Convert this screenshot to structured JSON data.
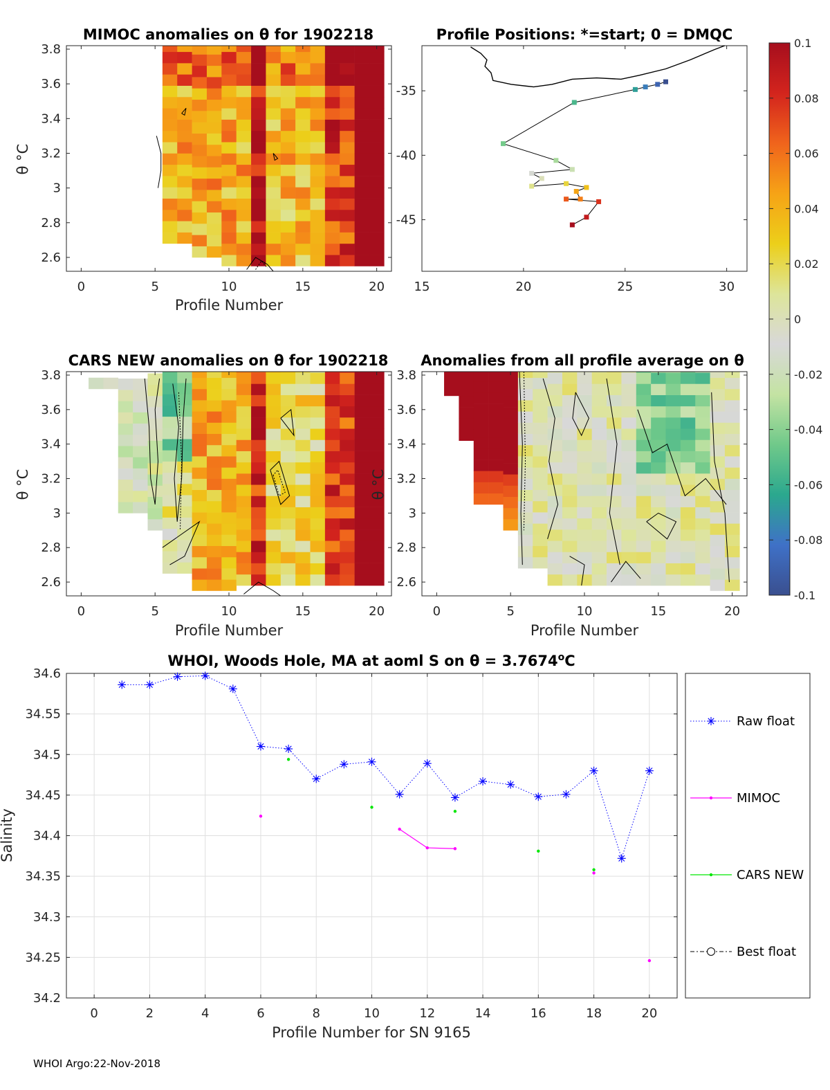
{
  "footer": "WHOI Argo:22-Nov-2018",
  "panels": {
    "mimoc": {
      "title": "MIMOC anomalies on θ  for 1902218",
      "xlabel": "Profile Number",
      "ylabel": "θ °C"
    },
    "positions": {
      "title": "Profile Positions: *=start; 0 = DMQC"
    },
    "cars": {
      "title": "CARS NEW anomalies on θ for 1902218",
      "xlabel": "Profile Number",
      "ylabel": "θ °C"
    },
    "avg": {
      "title": "Anomalies from all profile average on θ",
      "xlabel": "Profile Number",
      "ylabel": "θ °C"
    }
  },
  "colorbar": {
    "ticks": [
      "0.1",
      "0.08",
      "0.06",
      "0.04",
      "0.02",
      "0",
      "-0.02",
      "-0.04",
      "-0.06",
      "-0.08",
      "-0.1"
    ],
    "stops": [
      "#a60e1d",
      "#d3241d",
      "#f0641c",
      "#f6a316",
      "#eccf1a",
      "#dde59a",
      "#d8d8d8",
      "#c4e3a3",
      "#70c98a",
      "#2ba88e",
      "#3f71c7",
      "#3a4f8f"
    ]
  },
  "chart_data": [
    {
      "type": "heatmap",
      "id": "mimoc",
      "title": "MIMOC anomalies on θ  for 1902218",
      "xlabel": "Profile Number",
      "ylabel": "θ °C",
      "xlim": [
        -1,
        21
      ],
      "ylim": [
        2.52,
        3.82
      ],
      "xticks": [
        "0",
        "5",
        "10",
        "15",
        "20"
      ],
      "yticks": [
        "2.6",
        "2.8",
        "3",
        "3.2",
        "3.4",
        "3.6",
        "3.8"
      ],
      "profiles_with_data": [
        6,
        20
      ]
    },
    {
      "type": "scatter",
      "id": "positions",
      "title": "Profile Positions: *=start; 0 = DMQC",
      "xlim": [
        15,
        31
      ],
      "ylim": [
        -49,
        -31.5
      ],
      "xticks": [
        "15",
        "20",
        "25",
        "30"
      ],
      "yticks": [
        "-35",
        "-40",
        "-45"
      ],
      "track": [
        [
          27.0,
          -34.3
        ],
        [
          26.6,
          -34.5
        ],
        [
          26.0,
          -34.7
        ],
        [
          25.5,
          -34.9
        ],
        [
          22.5,
          -35.9
        ],
        [
          19.0,
          -39.1
        ],
        [
          21.6,
          -40.4
        ],
        [
          22.4,
          -41.1
        ],
        [
          20.4,
          -41.4
        ],
        [
          20.9,
          -41.8
        ],
        [
          20.4,
          -42.4
        ],
        [
          22.1,
          -42.2
        ],
        [
          23.1,
          -42.5
        ],
        [
          22.6,
          -42.8
        ],
        [
          22.8,
          -43.4
        ],
        [
          22.1,
          -43.4
        ],
        [
          23.7,
          -43.6
        ],
        [
          23.1,
          -44.8
        ],
        [
          22.4,
          -45.4
        ]
      ],
      "coast": [
        [
          17.4,
          -31.6
        ],
        [
          17.9,
          -32.1
        ],
        [
          18.2,
          -32.6
        ],
        [
          18.1,
          -33.1
        ],
        [
          18.4,
          -33.6
        ],
        [
          18.5,
          -34.2
        ],
        [
          19.4,
          -34.5
        ],
        [
          20.5,
          -34.7
        ],
        [
          21.4,
          -34.5
        ],
        [
          22.4,
          -34.1
        ],
        [
          23.6,
          -34.0
        ],
        [
          24.8,
          -34.1
        ],
        [
          25.7,
          -33.8
        ],
        [
          27.0,
          -33.3
        ],
        [
          28.2,
          -32.6
        ],
        [
          29.4,
          -31.8
        ],
        [
          29.9,
          -31.5
        ]
      ]
    },
    {
      "type": "heatmap",
      "id": "cars",
      "title": "CARS NEW anomalies on θ for 1902218",
      "xlabel": "Profile Number",
      "ylabel": "θ °C",
      "xlim": [
        -1,
        21
      ],
      "ylim": [
        2.52,
        3.82
      ],
      "xticks": [
        "0",
        "5",
        "10",
        "15",
        "20"
      ],
      "yticks": [
        "2.6",
        "2.8",
        "3",
        "3.2",
        "3.4",
        "3.6",
        "3.8"
      ],
      "profiles_with_data": [
        1,
        20
      ]
    },
    {
      "type": "heatmap",
      "id": "avg",
      "title": "Anomalies from all profile average on θ",
      "xlabel": "Profile Number",
      "ylabel": "θ °C",
      "xlim": [
        -1,
        21
      ],
      "ylim": [
        2.52,
        3.82
      ],
      "xticks": [
        "0",
        "5",
        "10",
        "15",
        "20"
      ],
      "yticks": [
        "2.6",
        "2.8",
        "3",
        "3.2",
        "3.4",
        "3.6",
        "3.8"
      ],
      "profiles_with_data": [
        1,
        20
      ]
    },
    {
      "type": "line",
      "id": "salinity",
      "title": "WHOI, Woods Hole, MA at aoml S on θ = 3.7674°C",
      "xlabel": "Profile Number for SN 9165",
      "ylabel": "Salinity",
      "xlim": [
        -1,
        21
      ],
      "ylim": [
        34.2,
        34.6
      ],
      "xticks": [
        "0",
        "2",
        "4",
        "6",
        "8",
        "10",
        "12",
        "14",
        "16",
        "18",
        "20"
      ],
      "yticks": [
        "34.2",
        "34.25",
        "34.3",
        "34.35",
        "34.4",
        "34.45",
        "34.5",
        "34.55",
        "34.6"
      ],
      "series": [
        {
          "name": "Raw float",
          "color": "#0000ff",
          "x": [
            1,
            2,
            3,
            4,
            5,
            6,
            7,
            8,
            9,
            10,
            11,
            12,
            13,
            14,
            15,
            16,
            17,
            18,
            19,
            20
          ],
          "values": [
            34.586,
            34.586,
            34.596,
            34.597,
            34.581,
            34.51,
            34.507,
            34.47,
            34.488,
            34.491,
            34.451,
            34.489,
            34.447,
            34.467,
            34.463,
            34.448,
            34.451,
            34.48,
            34.372,
            34.48
          ]
        },
        {
          "name": "MIMOC",
          "color": "#ff00ff",
          "x": [
            6,
            11,
            12,
            13,
            18,
            20
          ],
          "values": [
            34.424,
            34.408,
            34.385,
            34.384,
            34.354,
            34.246
          ]
        },
        {
          "name": "CARS NEW",
          "color": "#00e600",
          "x": [
            7,
            10,
            13,
            16,
            18
          ],
          "values": [
            34.494,
            34.435,
            34.43,
            34.381,
            34.358
          ]
        },
        {
          "name": "Best float",
          "color": "#000000",
          "x": [],
          "values": []
        }
      ]
    }
  ]
}
